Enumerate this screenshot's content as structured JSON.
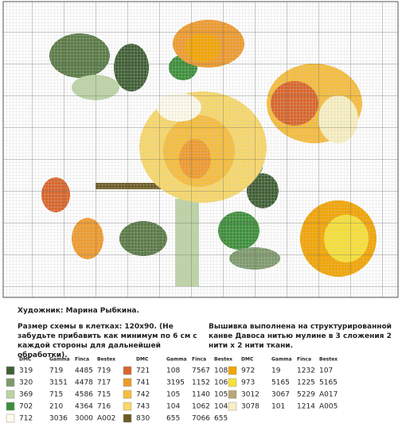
{
  "credit": "Художник: Марина Рыбкина.",
  "size_note": "Размер схемы в клетках: 120х90. (Не забудьте прибавить как минимум по 6 см с каждой стороны для дальнейшей обработки).",
  "fabric_note": "Вышивка выполнена на структурированной канве Давоса нитью мулине в 3 сложения 2 нити х 2 нити ткани.",
  "key": [
    {
      "headers": [
        "DMC",
        "Gamma",
        "Finca",
        "Bestex"
      ],
      "rows": [
        {
          "color": "#3f5f34",
          "cells": [
            "319",
            "719",
            "4485",
            "719"
          ]
        },
        {
          "color": "#7e9a6c",
          "cells": [
            "320",
            "3151",
            "4478",
            "717"
          ]
        },
        {
          "color": "#bcd3a4",
          "cells": [
            "369",
            "715",
            "4586",
            "715"
          ]
        },
        {
          "color": "#3d8f3a",
          "cells": [
            "702",
            "210",
            "4364",
            "716"
          ]
        },
        {
          "color": "#fffbea",
          "cells": [
            "712",
            "3036",
            "3000",
            "A002"
          ]
        }
      ]
    },
    {
      "headers": [
        "DMC",
        "Gamma",
        "Finca",
        "Bestex"
      ],
      "rows": [
        {
          "color": "#d9652a",
          "cells": [
            "721",
            "108",
            "7567",
            "108"
          ]
        },
        {
          "color": "#ef9a2c",
          "cells": [
            "741",
            "3195",
            "1152",
            "106"
          ]
        },
        {
          "color": "#f6bd3c",
          "cells": [
            "742",
            "105",
            "1140",
            "105"
          ]
        },
        {
          "color": "#f8d86a",
          "cells": [
            "743",
            "104",
            "1062",
            "104"
          ]
        },
        {
          "color": "#6b5a22",
          "cells": [
            "830",
            "655",
            "7066",
            "655"
          ]
        }
      ]
    },
    {
      "headers": [
        "DMC",
        "Gamma",
        "Finca",
        "Bestex"
      ],
      "rows": [
        {
          "color": "#f2a400",
          "cells": [
            "972",
            "19",
            "1232",
            "107"
          ]
        },
        {
          "color": "#f7e036",
          "cells": [
            "973",
            "5165",
            "1225",
            "5165"
          ]
        },
        {
          "color": "#b9a576",
          "cells": [
            "3012",
            "3067",
            "5229",
            "A017"
          ]
        },
        {
          "color": "#f8f0c2",
          "cells": [
            "3078",
            "101",
            "1214",
            "A005"
          ]
        }
      ]
    }
  ]
}
